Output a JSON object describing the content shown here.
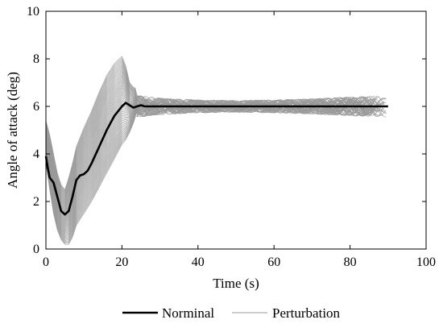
{
  "chart_data": {
    "type": "line",
    "xlabel": "Time (s)",
    "ylabel": "Angle of attack (deg)",
    "xlim": [
      0,
      100
    ],
    "ylim": [
      0,
      10
    ],
    "x_ticks": [
      0,
      20,
      40,
      60,
      80,
      100
    ],
    "y_ticks": [
      0,
      2,
      4,
      6,
      8,
      10
    ],
    "grid": false,
    "legend_position": "bottom",
    "series": [
      {
        "name": "Norminal",
        "color": "#000000",
        "x": [
          0,
          0.5,
          1,
          2,
          3,
          4,
          5,
          6,
          7,
          8,
          9,
          10,
          11,
          12,
          14,
          16,
          18,
          20,
          21,
          22,
          23,
          24,
          25,
          26,
          28,
          30,
          40,
          50,
          60,
          70,
          80,
          90
        ],
        "y": [
          3.9,
          3.4,
          3.0,
          2.8,
          2.2,
          1.6,
          1.45,
          1.6,
          2.2,
          2.9,
          3.1,
          3.15,
          3.3,
          3.6,
          4.3,
          5.0,
          5.6,
          6.0,
          6.15,
          6.05,
          5.95,
          6.0,
          6.05,
          6.0,
          6.0,
          6.0,
          6.0,
          6.0,
          6.0,
          6.0,
          6.0,
          6.0
        ]
      },
      {
        "name": "Perturbation",
        "color": "#999999",
        "band_x": [
          0,
          1,
          2,
          3,
          4,
          5,
          6,
          7,
          8,
          10,
          12,
          14,
          16,
          18,
          20,
          21,
          22,
          23,
          24,
          26,
          30,
          40,
          50,
          60,
          70,
          80,
          90
        ],
        "band_low": [
          3.6,
          2.5,
          1.5,
          0.8,
          0.4,
          0.2,
          0.2,
          0.5,
          1.0,
          1.5,
          2.0,
          2.6,
          3.2,
          3.8,
          4.4,
          4.6,
          4.9,
          5.3,
          5.8,
          5.7,
          5.75,
          5.8,
          5.8,
          5.75,
          5.7,
          5.6,
          5.5
        ],
        "band_high": [
          5.4,
          4.8,
          4.0,
          3.2,
          2.7,
          2.5,
          3.0,
          3.6,
          4.3,
          5.1,
          5.8,
          6.6,
          7.3,
          7.8,
          8.1,
          7.7,
          7.0,
          6.8,
          6.75,
          6.55,
          6.45,
          6.35,
          6.3,
          6.3,
          6.35,
          6.4,
          6.4
        ]
      }
    ]
  }
}
